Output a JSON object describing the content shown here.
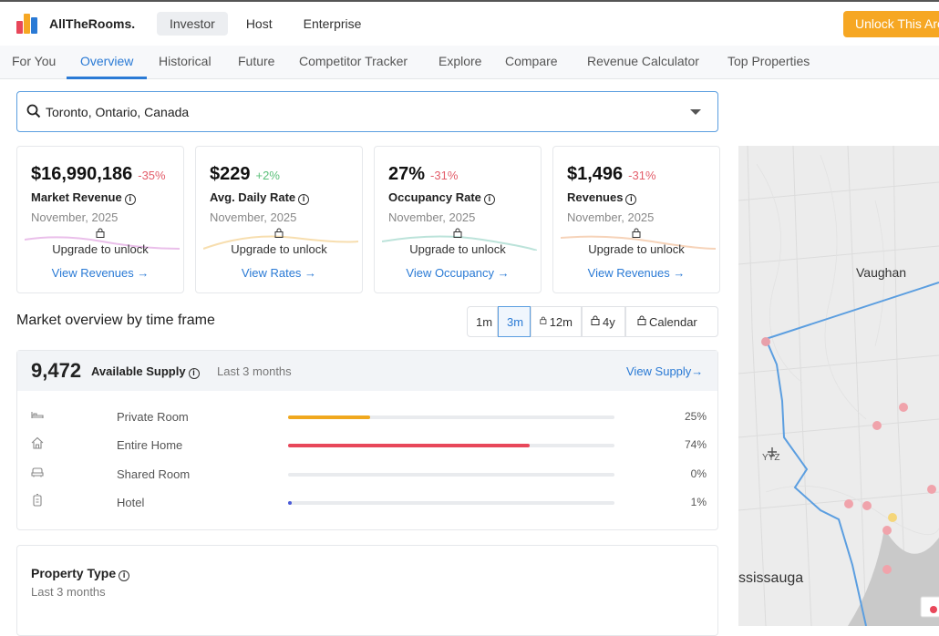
{
  "brand": {
    "name": "AllTheRooms."
  },
  "topnav": {
    "items": [
      "Investor",
      "Host",
      "Enterprise"
    ],
    "active": "Investor",
    "unlock_label": "Unlock This Area"
  },
  "subnav": {
    "items": [
      "For You",
      "Overview",
      "Historical",
      "Future",
      "Competitor Tracker",
      "Explore",
      "Compare",
      "Revenue Calculator",
      "Top Properties"
    ],
    "active": "Overview"
  },
  "search": {
    "value": "Toronto, Ontario, Canada"
  },
  "metrics": [
    {
      "value": "$16,990,186",
      "change": "-35%",
      "label": "Market Revenue",
      "date": "November, 2025",
      "upgrade": "Upgrade to unlock",
      "link": "View Revenues →",
      "accent": "#d98bd8"
    },
    {
      "value": "$229",
      "change": "+2%",
      "label": "Avg. Daily Rate",
      "date": "November, 2025",
      "upgrade": "Upgrade to unlock",
      "link": "View Rates →",
      "accent": "#f2c879"
    },
    {
      "value": "27%",
      "change": "-31%",
      "label": "Occupancy Rate",
      "date": "November, 2025",
      "upgrade": "Upgrade to unlock",
      "link": "View Occupancy →",
      "accent": "#8fd1c2"
    },
    {
      "value": "$1,496",
      "change": "-31%",
      "label": "Revenues",
      "date": "November, 2025",
      "upgrade": "Upgrade to unlock",
      "link": "View Revenues →",
      "accent": "#f0b58a"
    }
  ],
  "market_overview": {
    "title": "Market overview by time frame",
    "timeframes": [
      {
        "label": "1m",
        "locked": false
      },
      {
        "label": "3m",
        "locked": false
      },
      {
        "label": "12m",
        "locked": true
      },
      {
        "label": "4y",
        "locked": true
      },
      {
        "label": "Calendar",
        "locked": true
      }
    ],
    "active_timeframe": "3m"
  },
  "supply": {
    "count": "9,472",
    "label": "Available Supply",
    "period": "Last 3 months",
    "link": "View Supply→",
    "rows": [
      {
        "label": "Private Room",
        "percent": "25%",
        "value": 25,
        "color": "#f0a81e",
        "icon": "bed-icon"
      },
      {
        "label": "Entire Home",
        "percent": "74%",
        "value": 74,
        "color": "#e8475a",
        "icon": "home-icon"
      },
      {
        "label": "Shared Room",
        "percent": "0%",
        "value": 0,
        "color": "#7b8bd6",
        "icon": "sofa-icon"
      },
      {
        "label": "Hotel",
        "percent": "1%",
        "value": 1,
        "color": "#4a5bd8",
        "icon": "hotel-icon"
      }
    ]
  },
  "property_type": {
    "title": "Property Type",
    "period": "Last 3 months"
  },
  "map": {
    "labels": {
      "vaughan": "Vaughan",
      "mississauga": "ssissauga",
      "airport": "YYZ"
    }
  },
  "colors": {
    "accent": "#2a7ad5",
    "cta": "#f6a723",
    "negative": "#e35d6a",
    "positive": "#5cc07a"
  }
}
